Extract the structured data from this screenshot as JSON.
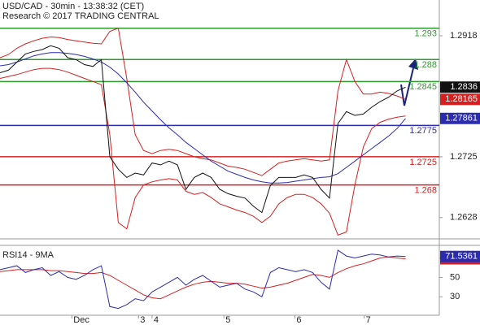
{
  "chart_data": [
    {
      "type": "line",
      "title": "USD/CAD - 30min - 13:38:32 (CET)",
      "subtitle": "Research © 2017 TRADING CENTRAL",
      "x": [
        0,
        1,
        2,
        3,
        4,
        5,
        6,
        7,
        8,
        9,
        10,
        11,
        12,
        13,
        14,
        15,
        16,
        17,
        18,
        19,
        20,
        21,
        22,
        23,
        24,
        25,
        26,
        27,
        28,
        29,
        30,
        31,
        32,
        33,
        34,
        35,
        36,
        37,
        38,
        39,
        40,
        41,
        42,
        43,
        44,
        45,
        46,
        47,
        48
      ],
      "xlim": [
        0,
        52
      ],
      "ylim": [
        1.2594,
        1.2975
      ],
      "yticks": [
        1.2918,
        1.2725,
        1.2628
      ],
      "levels": [
        {
          "value": 1.293,
          "color": "#2e9b2e"
        },
        {
          "value": 1.288,
          "color": "#2e9b2e"
        },
        {
          "value": 1.2845,
          "color": "#2e9b2e"
        },
        {
          "value": 1.2775,
          "color": "#2b2bb0"
        },
        {
          "value": 1.2725,
          "color": "#d62020"
        },
        {
          "value": 1.268,
          "color": "#d62020"
        }
      ],
      "series": [
        {
          "color": "#d62020",
          "show_last": true,
          "values": [
            1.2883,
            1.2888,
            1.2898,
            1.2905,
            1.291,
            1.2914,
            1.2916,
            1.2915,
            1.2912,
            1.291,
            1.2908,
            1.2906,
            1.2905,
            1.2925,
            1.293,
            1.285,
            1.276,
            1.2735,
            1.273,
            1.2735,
            1.2737,
            1.2735,
            1.273,
            1.2725,
            1.2722,
            1.272,
            1.2715,
            1.271,
            1.2708,
            1.2705,
            1.27,
            1.2695,
            1.2705,
            1.2715,
            1.2718,
            1.272,
            1.2722,
            1.272,
            1.2718,
            1.272,
            1.283,
            1.288,
            1.2845,
            1.2825,
            1.2825,
            1.2828,
            1.2826,
            1.2822,
            1.28165
          ]
        },
        {
          "color": "#d62020",
          "values": [
            1.285,
            1.2853,
            1.2856,
            1.286,
            1.2864,
            1.2866,
            1.2866,
            1.2864,
            1.286,
            1.2855,
            1.285,
            1.2845,
            1.284,
            1.276,
            1.262,
            1.261,
            1.266,
            1.268,
            1.2685,
            1.2688,
            1.269,
            1.2688,
            1.267,
            1.2665,
            1.2668,
            1.266,
            1.265,
            1.2645,
            1.264,
            1.2636,
            1.263,
            1.262,
            1.263,
            1.265,
            1.266,
            1.2665,
            1.2665,
            1.266,
            1.265,
            1.2635,
            1.26,
            1.2605,
            1.268,
            1.274,
            1.277,
            1.278,
            1.2785,
            1.2788,
            1.279
          ]
        },
        {
          "color": "#2b2bb0",
          "show_last": true,
          "values": [
            1.287,
            1.2872,
            1.2876,
            1.2881,
            1.2886,
            1.2889,
            1.2891,
            1.2891,
            1.289,
            1.2888,
            1.2885,
            1.2881,
            1.2876,
            1.2868,
            1.2857,
            1.2843,
            1.2828,
            1.2812,
            1.2798,
            1.2784,
            1.2771,
            1.276,
            1.2748,
            1.2738,
            1.2728,
            1.2718,
            1.271,
            1.2702,
            1.2697,
            1.2692,
            1.2688,
            1.2685,
            1.2683,
            1.2683,
            1.2684,
            1.2686,
            1.2688,
            1.269,
            1.2692,
            1.2693,
            1.2698,
            1.2708,
            1.2718,
            1.2728,
            1.2738,
            1.2748,
            1.2758,
            1.277,
            1.27861
          ]
        },
        {
          "color": "#111111",
          "show_last": true,
          "values": [
            1.2859,
            1.2863,
            1.2876,
            1.2889,
            1.2893,
            1.2896,
            1.2902,
            1.2898,
            1.2883,
            1.288,
            1.2872,
            1.2869,
            1.288,
            1.2725,
            1.2705,
            1.2692,
            1.2699,
            1.2696,
            1.2715,
            1.2712,
            1.2718,
            1.2712,
            1.2673,
            1.2692,
            1.2699,
            1.2692,
            1.2673,
            1.2666,
            1.2662,
            1.2659,
            1.2646,
            1.2636,
            1.2679,
            1.2692,
            1.2692,
            1.2692,
            1.2696,
            1.2692,
            1.2673,
            1.2659,
            1.2778,
            1.2797,
            1.2791,
            1.2793,
            1.2804,
            1.2813,
            1.282,
            1.283,
            1.2836
          ]
        }
      ]
    },
    {
      "type": "line",
      "title": "RSI14 - 9MA",
      "x": [
        0,
        1,
        2,
        3,
        4,
        5,
        6,
        7,
        8,
        9,
        10,
        11,
        12,
        13,
        14,
        15,
        16,
        17,
        18,
        19,
        20,
        21,
        22,
        23,
        24,
        25,
        26,
        27,
        28,
        29,
        30,
        31,
        32,
        33,
        34,
        35,
        36,
        37,
        38,
        39,
        40,
        41,
        42,
        43,
        44,
        45,
        46,
        47,
        48
      ],
      "xlim": [
        0,
        52
      ],
      "ylim": [
        11,
        83
      ],
      "yticks": [
        70,
        50,
        30
      ],
      "xticks": [
        {
          "value": 8.5,
          "label": "Dec"
        },
        {
          "value": 16.4,
          "label": "3"
        },
        {
          "value": 18,
          "label": "4"
        },
        {
          "value": 26.5,
          "label": "5"
        },
        {
          "value": 34.9,
          "label": "6"
        },
        {
          "value": 43.1,
          "label": "7"
        }
      ],
      "series": [
        {
          "color": "#d62020",
          "show_last": true,
          "values": [
            56,
            57,
            58,
            58,
            58,
            58,
            57,
            57,
            56,
            55,
            54,
            54,
            55,
            52,
            47,
            42,
            37,
            32,
            29,
            28,
            32,
            36,
            40,
            43,
            45,
            46,
            45,
            44,
            44,
            43,
            41,
            39,
            40,
            42,
            44,
            47,
            50,
            53,
            52,
            50,
            55,
            59,
            62,
            64,
            67,
            70,
            71,
            70,
            69.1599
          ]
        },
        {
          "color": "#2b2bb0",
          "show_last": true,
          "values": [
            58,
            60,
            62,
            55,
            58,
            60,
            52,
            56,
            50,
            48,
            52,
            58,
            62,
            20,
            18,
            22,
            28,
            26,
            35,
            40,
            45,
            50,
            42,
            48,
            52,
            46,
            40,
            42,
            44,
            38,
            35,
            30,
            55,
            60,
            58,
            56,
            58,
            55,
            45,
            38,
            78,
            72,
            70,
            72,
            74,
            73,
            71,
            72,
            71.5361
          ]
        }
      ]
    }
  ]
}
